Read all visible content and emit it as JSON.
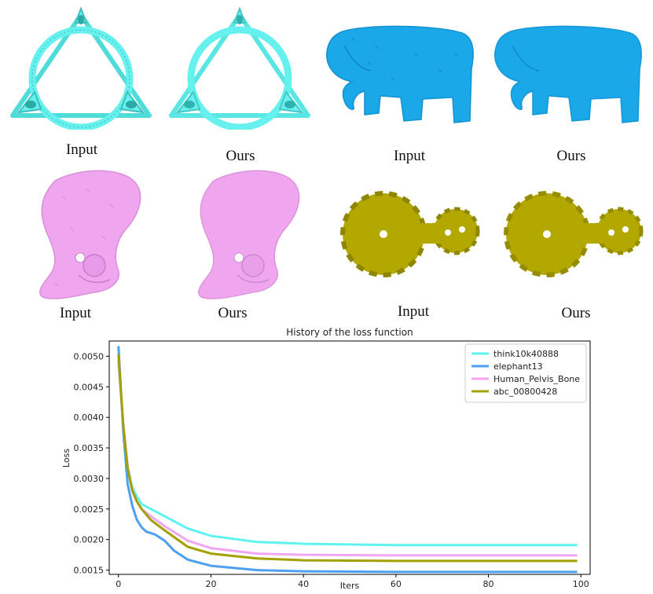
{
  "panels": {
    "row1": [
      {
        "caption": "Input"
      },
      {
        "caption": "Ours"
      },
      {
        "caption": "Input"
      },
      {
        "caption": "Ours"
      }
    ],
    "row2": [
      {
        "caption": "Input"
      },
      {
        "caption": "Ours"
      },
      {
        "caption": "Input"
      },
      {
        "caption": "Ours"
      }
    ]
  },
  "colors": {
    "ring": "#66f0ee",
    "elephant": "#1aa8e8",
    "pelvis": "#efa6ef",
    "gear": "#b3a800"
  },
  "chart_data": {
    "type": "line",
    "title": "History of the loss function",
    "xlabel": "Iters",
    "ylabel": "Loss",
    "xlim": [
      -2,
      102
    ],
    "ylim": [
      0.00143,
      0.00525
    ],
    "xticks": [
      0,
      20,
      40,
      60,
      80,
      100
    ],
    "yticks": [
      0.0015,
      0.002,
      0.0025,
      0.003,
      0.0035,
      0.004,
      0.0045,
      0.005
    ],
    "ytick_labels": [
      "0.0015",
      "0.0020",
      "0.0025",
      "0.0030",
      "0.0035",
      "0.0040",
      "0.0045",
      "0.0050"
    ],
    "legend_position": "top-right",
    "grid": false,
    "series": [
      {
        "name": "think10k40888",
        "color": "#5ff3f0",
        "x": [
          0,
          1,
          2,
          3,
          4,
          5,
          7,
          10,
          15,
          20,
          30,
          40,
          60,
          80,
          99
        ],
        "values": [
          0.00488,
          0.0039,
          0.0032,
          0.00285,
          0.0027,
          0.00258,
          0.0025,
          0.00238,
          0.00218,
          0.00206,
          0.00196,
          0.00193,
          0.00191,
          0.00191,
          0.00191
        ]
      },
      {
        "name": "elephant13",
        "color": "#4d9ff0",
        "x": [
          0,
          1,
          2,
          3,
          4,
          5,
          6,
          8,
          10,
          12,
          15,
          20,
          30,
          40,
          60,
          80,
          99
        ],
        "values": [
          0.00515,
          0.0038,
          0.0029,
          0.00255,
          0.00232,
          0.0022,
          0.00213,
          0.00208,
          0.00198,
          0.00182,
          0.00167,
          0.00157,
          0.0015,
          0.00148,
          0.00147,
          0.00147,
          0.00147
        ]
      },
      {
        "name": "Human_Pelvis_Bone",
        "color": "#f2a6f2",
        "x": [
          0,
          1,
          2,
          3,
          4,
          5,
          7,
          10,
          15,
          20,
          30,
          40,
          60,
          80,
          99
        ],
        "values": [
          0.00492,
          0.0039,
          0.00318,
          0.0028,
          0.00262,
          0.0025,
          0.00238,
          0.00222,
          0.00198,
          0.00186,
          0.00177,
          0.00175,
          0.00174,
          0.00174,
          0.00174
        ]
      },
      {
        "name": "abc_00800428",
        "color": "#a3a000",
        "x": [
          0,
          1,
          2,
          3,
          4,
          5,
          7,
          10,
          15,
          20,
          30,
          40,
          60,
          80,
          99
        ],
        "values": [
          0.00502,
          0.0039,
          0.00315,
          0.0028,
          0.00262,
          0.0025,
          0.00232,
          0.00215,
          0.00188,
          0.00177,
          0.00169,
          0.00166,
          0.00165,
          0.00165,
          0.00165
        ]
      }
    ]
  }
}
